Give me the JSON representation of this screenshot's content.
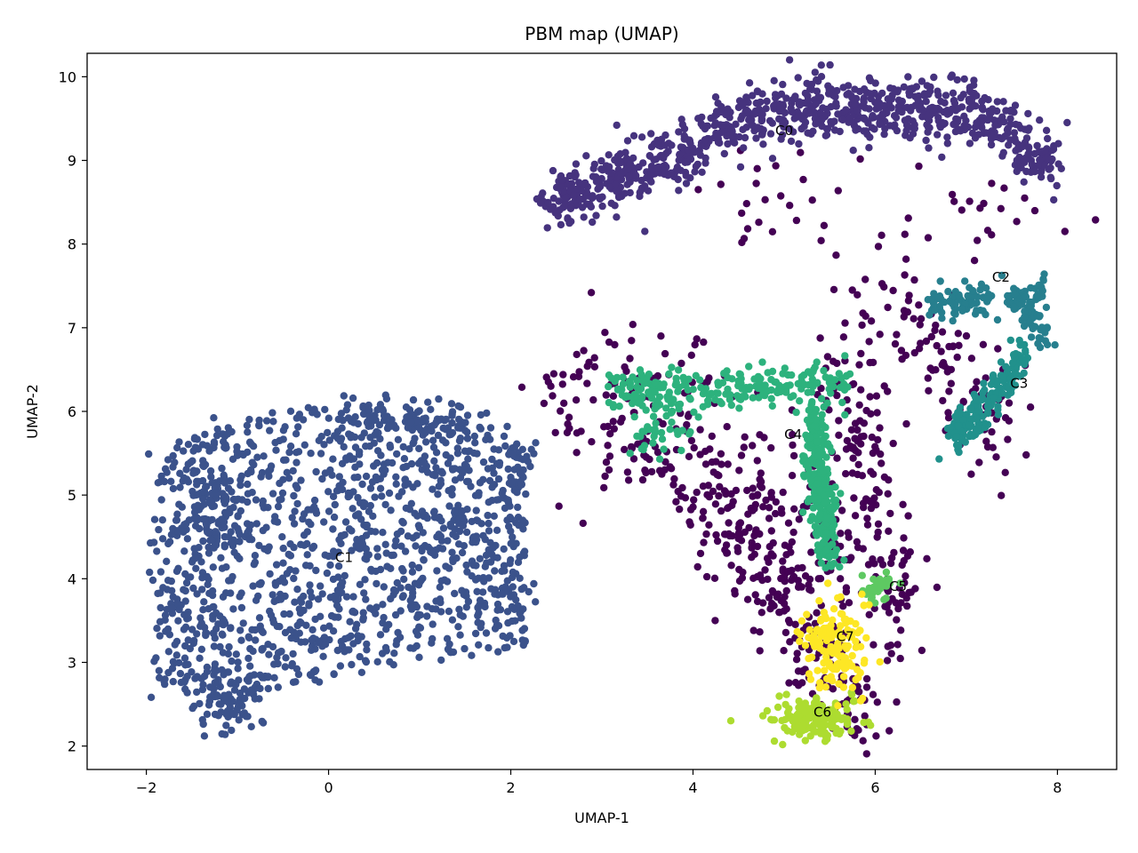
{
  "chart_data": {
    "type": "scatter",
    "title": "PBM map (UMAP)",
    "xlabel": "UMAP-1",
    "ylabel": "UMAP-2",
    "xlim": [
      -2.65,
      8.65
    ],
    "ylim": [
      1.72,
      10.28
    ],
    "xticks": [
      -2,
      0,
      2,
      4,
      6,
      8
    ],
    "yticks": [
      2,
      3,
      4,
      5,
      6,
      7,
      8,
      9,
      10
    ],
    "grid": false,
    "legend": "none",
    "clusters": [
      {
        "label": "C0",
        "color": "#46337e",
        "label_pos": [
          5.0,
          9.35
        ]
      },
      {
        "label": "C1",
        "color": "#3b528b",
        "label_pos": [
          0.17,
          4.25
        ]
      },
      {
        "label": "C2",
        "color": "#277f8e",
        "label_pos": [
          7.38,
          7.6
        ]
      },
      {
        "label": "C3",
        "color": "#21918c",
        "label_pos": [
          7.58,
          6.33
        ]
      },
      {
        "label": "C4",
        "color": "#2db27d",
        "label_pos": [
          5.1,
          5.72
        ]
      },
      {
        "label": "C5",
        "color": "#5ec962",
        "label_pos": [
          6.25,
          3.9
        ]
      },
      {
        "label": "C6",
        "color": "#addc30",
        "label_pos": [
          5.42,
          2.4
        ]
      },
      {
        "label": "C7",
        "color": "#fde725",
        "label_pos": [
          5.67,
          3.3
        ]
      },
      {
        "label": "",
        "color": "#440154",
        "label_pos": null
      }
    ]
  }
}
